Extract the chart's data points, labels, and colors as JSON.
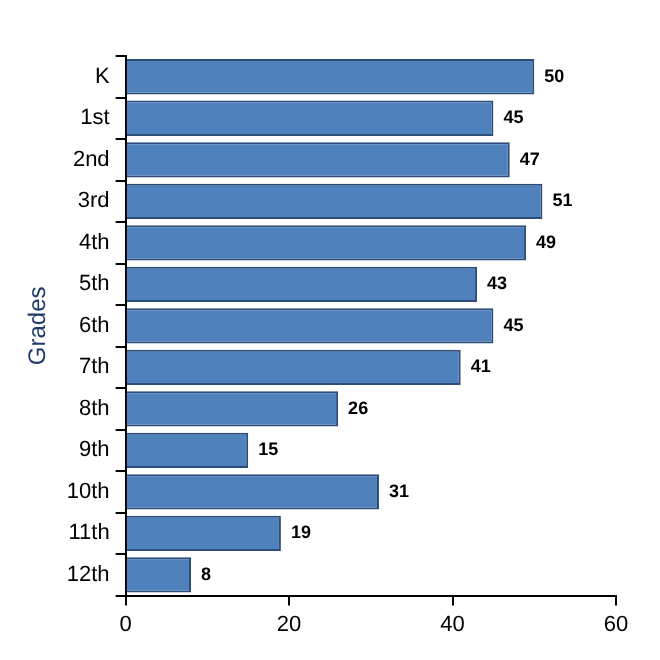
{
  "chart_data": {
    "type": "bar",
    "orientation": "horizontal",
    "ylabel": "Grades",
    "categories": [
      "K",
      "1st",
      "2nd",
      "3rd",
      "4th",
      "5th",
      "6th",
      "7th",
      "8th",
      "9th",
      "10th",
      "11th",
      "12th"
    ],
    "values": [
      50,
      45,
      47,
      51,
      49,
      43,
      45,
      41,
      26,
      15,
      31,
      19,
      8
    ],
    "color": "#4f81bd",
    "xlim": [
      0,
      60
    ],
    "xticks": [
      0,
      20,
      40,
      60
    ],
    "grid": false,
    "legend": false,
    "data_labels": true
  }
}
